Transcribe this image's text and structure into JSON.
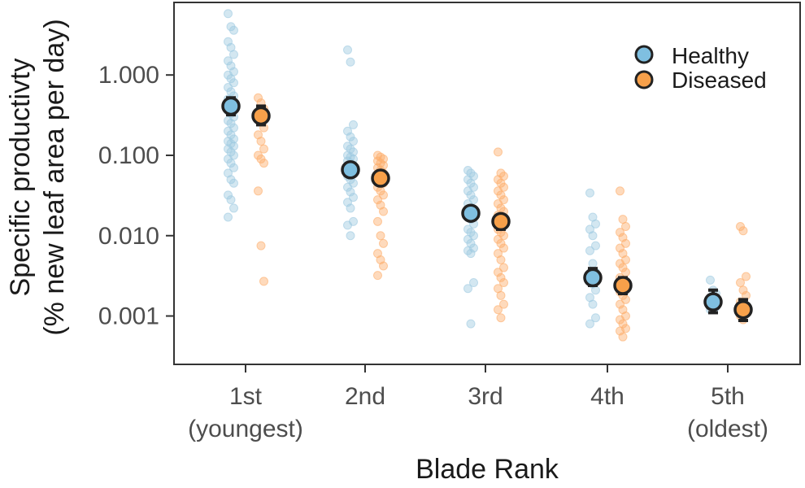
{
  "chart_data": {
    "type": "scatter",
    "title": "",
    "xlabel": "Blade Rank",
    "ylabel_line1": "Specific productivty",
    "ylabel_line2": "(% new leaf area per day)",
    "y_scale": "log",
    "ylim": [
      0.00025,
      8.0
    ],
    "y_ticks": [
      {
        "value": 1.0,
        "label": "1.000"
      },
      {
        "value": 0.1,
        "label": "0.100"
      },
      {
        "value": 0.01,
        "label": "0.010"
      },
      {
        "value": 0.001,
        "label": "0.001"
      }
    ],
    "categories": [
      {
        "line1": "1st",
        "line2": "(youngest)"
      },
      {
        "line1": "2nd",
        "line2": ""
      },
      {
        "line1": "3rd",
        "line2": ""
      },
      {
        "line1": "4th",
        "line2": ""
      },
      {
        "line1": "5th",
        "line2": "(oldest)"
      }
    ],
    "grid": false,
    "legend_position": "top-right",
    "series": [
      {
        "name": "Healthy",
        "color": "#7fbfe0",
        "raw_color": "#9ecae1",
        "means": [
          0.41,
          0.066,
          0.019,
          0.003,
          0.0015
        ],
        "err_low": [
          0.32,
          0.055,
          0.016,
          0.0024,
          0.0011
        ],
        "err_high": [
          0.52,
          0.079,
          0.023,
          0.0039,
          0.0021
        ],
        "points": [
          [
            5.8,
            4.0,
            3.6,
            2.6,
            2.2,
            1.8,
            1.5,
            1.3,
            1.1,
            1.0,
            0.9,
            0.8,
            0.7,
            0.62,
            0.55,
            0.5,
            0.45,
            0.4,
            0.36,
            0.33,
            0.3,
            0.27,
            0.25,
            0.22,
            0.2,
            0.18,
            0.16,
            0.15,
            0.14,
            0.13,
            0.12,
            0.11,
            0.1,
            0.09,
            0.08,
            0.07,
            0.06,
            0.05,
            0.045,
            0.032,
            0.028,
            0.022,
            0.017
          ],
          [
            2.05,
            1.45,
            0.24,
            0.2,
            0.17,
            0.15,
            0.13,
            0.12,
            0.11,
            0.1,
            0.095,
            0.09,
            0.085,
            0.08,
            0.075,
            0.07,
            0.065,
            0.06,
            0.055,
            0.05,
            0.045,
            0.04,
            0.035,
            0.03,
            0.026,
            0.022,
            0.015,
            0.0135,
            0.01
          ],
          [
            0.065,
            0.06,
            0.055,
            0.05,
            0.045,
            0.04,
            0.036,
            0.032,
            0.028,
            0.025,
            0.022,
            0.02,
            0.018,
            0.016,
            0.014,
            0.012,
            0.011,
            0.01,
            0.009,
            0.008,
            0.007,
            0.0065,
            0.006,
            0.0026,
            0.0022,
            0.0008
          ],
          [
            0.034,
            0.017,
            0.014,
            0.012,
            0.01,
            0.0075,
            0.0065,
            0.0045,
            0.0035,
            0.003,
            0.0025,
            0.0021,
            0.0017,
            0.0014,
            0.00095,
            0.0008
          ],
          [
            0.0028,
            0.0021,
            0.0019,
            0.0017,
            0.0015,
            0.0013,
            0.0012
          ]
        ]
      },
      {
        "name": "Diseased",
        "color": "#f7a04a",
        "raw_color": "#fdae6b",
        "means": [
          0.31,
          0.052,
          0.015,
          0.0024,
          0.0012
        ],
        "err_low": [
          0.24,
          0.045,
          0.012,
          0.0019,
          0.00088
        ],
        "err_high": [
          0.41,
          0.06,
          0.018,
          0.003,
          0.0016
        ],
        "points": [
          [
            0.52,
            0.45,
            0.38,
            0.32,
            0.27,
            0.22,
            0.18,
            0.15,
            0.12,
            0.1,
            0.09,
            0.08,
            0.036,
            0.0075,
            0.0027
          ],
          [
            0.1,
            0.095,
            0.09,
            0.085,
            0.08,
            0.075,
            0.07,
            0.065,
            0.06,
            0.055,
            0.05,
            0.045,
            0.04,
            0.036,
            0.032,
            0.028,
            0.024,
            0.02,
            0.015,
            0.01,
            0.008,
            0.006,
            0.005,
            0.0042,
            0.0032
          ],
          [
            0.11,
            0.06,
            0.055,
            0.05,
            0.045,
            0.04,
            0.036,
            0.032,
            0.028,
            0.025,
            0.022,
            0.02,
            0.018,
            0.016,
            0.014,
            0.012,
            0.011,
            0.01,
            0.009,
            0.008,
            0.007,
            0.006,
            0.005,
            0.004,
            0.0035,
            0.003,
            0.0026,
            0.0022,
            0.0018,
            0.0014,
            0.0012,
            0.00095
          ],
          [
            0.036,
            0.016,
            0.013,
            0.011,
            0.0095,
            0.008,
            0.007,
            0.006,
            0.005,
            0.0045,
            0.004,
            0.0035,
            0.003,
            0.0026,
            0.0023,
            0.002,
            0.0018,
            0.0016,
            0.0014,
            0.0012,
            0.001,
            0.0009,
            0.0008,
            0.0007,
            0.00065,
            0.00055
          ],
          [
            0.013,
            0.0115,
            0.0031,
            0.0026,
            0.0021,
            0.0018,
            0.0015,
            0.0013,
            0.0011,
            0.001,
            0.0009
          ]
        ]
      }
    ]
  }
}
